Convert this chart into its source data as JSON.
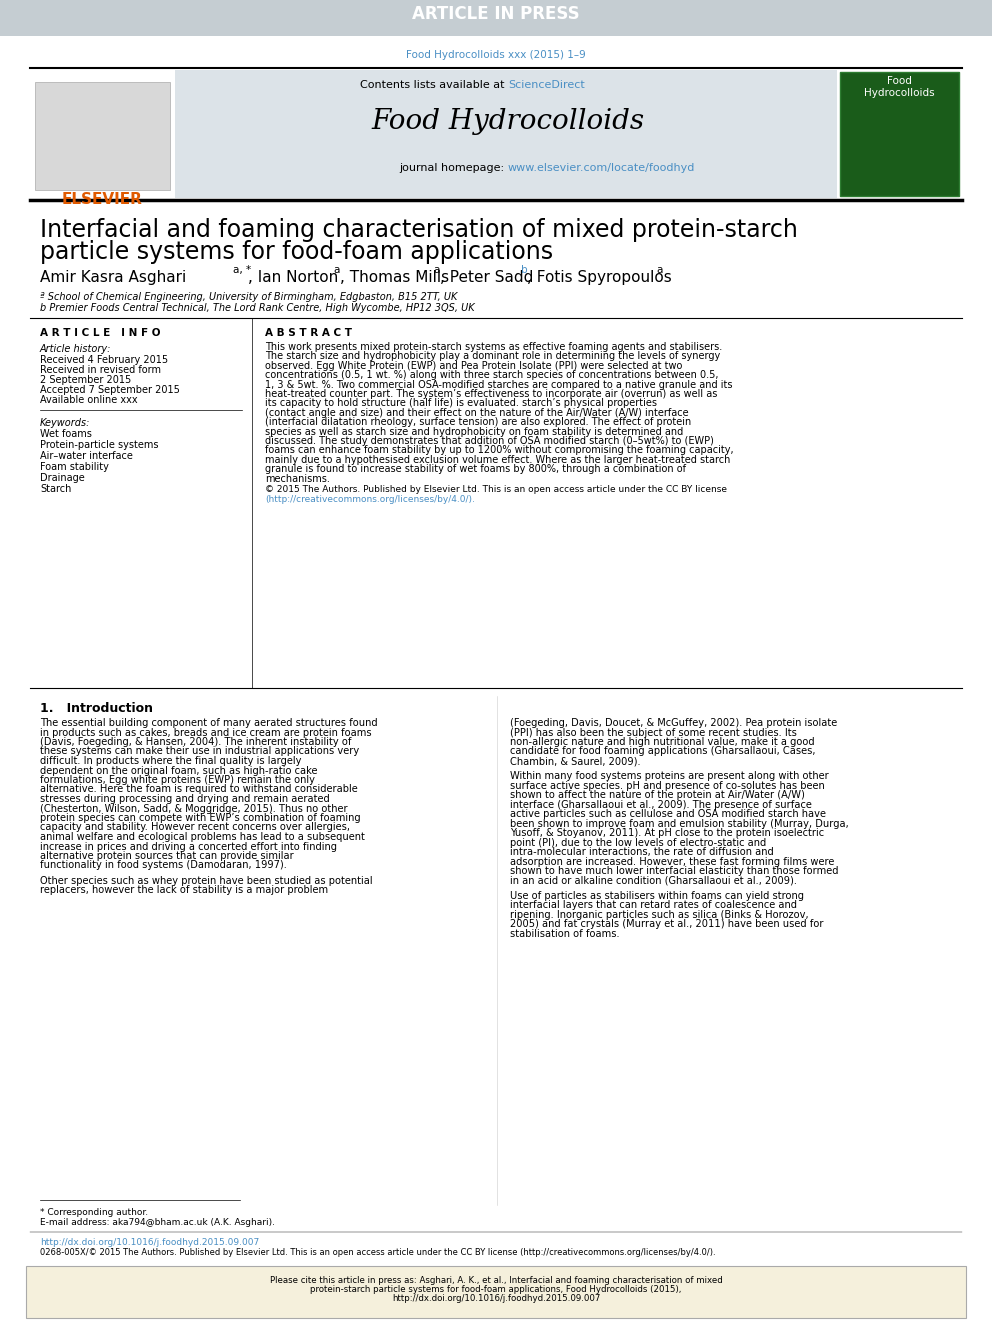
{
  "bg_banner": "#c5cdd2",
  "text_banner": "ARTICLE IN PRESS",
  "color_white": "#ffffff",
  "color_link": "#4a8fc4",
  "color_elsevier": "#e05a00",
  "color_black": "#1a1a1a",
  "color_gray_header": "#dce3e8",
  "color_cite_bg": "#f5f0dc",
  "journal_ref": "Food Hydrocolloids xxx (2015) 1–9",
  "journal_name": "Food Hydrocolloids",
  "sciencedirect_text": "ScienceDirect",
  "homepage_link": "www.elsevier.com/locate/foodhyd",
  "title_line1": "Interfacial and foaming characterisation of mixed protein-starch",
  "title_line2": "particle systems for food-foam applications",
  "affil_a": "ª School of Chemical Engineering, University of Birmingham, Edgbaston, B15 2TT, UK",
  "affil_b": "b Premier Foods Central Technical, The Lord Rank Centre, High Wycombe, HP12 3QS, UK",
  "info_header": "A R T I C L E   I N F O",
  "abstract_header": "A B S T R A C T",
  "history_label": "Article history:",
  "recv1": "Received 4 February 2015",
  "recv2": "Received in revised form",
  "recv3": "2 September 2015",
  "accepted": "Accepted 7 September 2015",
  "available": "Available online xxx",
  "kw_label": "Keywords:",
  "kw_list": [
    "Wet foams",
    "Protein-particle systems",
    "Air–water interface",
    "Foam stability",
    "Drainage",
    "Starch"
  ],
  "abstract_body": "This work presents mixed protein-starch systems as effective foaming agents and stabilisers. The starch size and hydrophobicity play a dominant role in determining the levels of synergy observed. Egg White Protein (EWP) and Pea Protein Isolate (PPI) were selected at two concentrations (0.5, 1 wt. %) along with three starch species of concentrations between 0.5, 1, 3 & 5wt. %. Two commercial OSA-modified starches are compared to a native granule and its heat-treated counter part. The system’s effectiveness to incorporate air (overrun) as well as its capacity to hold structure (half life) is evaluated. starch’s physical properties (contact angle and size) and their effect on the nature of the Air/Water (A/W) interface (interfacial dilatation rheology, surface tension) are also explored. The effect of protein species as well as starch size and hydrophobicity on foam stability is determined and discussed. The study demonstrates that addition of OSA modified starch (0–5wt%) to (EWP) foams can enhance foam stability by up to 1200% without compromising the foaming capacity, mainly due to a hypothesised exclusion volume effect. Where as the larger heat-treated starch granule is found to increase stability of wet foams by 800%, through a combination of mechanisms.",
  "abstract_copy": "© 2015 The Authors. Published by Elsevier Ltd. This is an open access article under the CC BY license",
  "abstract_copy2": "(http://creativecommons.org/licenses/by/4.0/).",
  "intro_h": "1.   Introduction",
  "intro_c1p1": "The essential building component of many aerated structures found in products such as cakes, breads and ice cream are protein foams (Davis, Foegeding, & Hansen, 2004). The inherent instability of these systems can make their use in industrial applications very difficult. In products where the final quality is largely dependent on the original foam, such as high-ratio cake formulations, Egg white proteins (EWP) remain the only alternative. Here the foam is required to withstand considerable stresses during processing and drying and remain aerated (Chesterton, Wilson, Sadd, & Moggridge, 2015). Thus no other protein species can compete with EWP’s combination of foaming capacity and stability. However recent concerns over allergies, animal welfare and ecological problems has lead to a subsequent increase in prices and driving a concerted effort into finding alternative protein sources that can provide similar functionality in food systems (Damodaran, 1997).",
  "intro_c1p2": "Other species such as whey protein have been studied as potential replacers, however the lack of stability is a major problem",
  "intro_c2p1": "(Foegeding, Davis, Doucet, & McGuffey, 2002). Pea protein isolate (PPI) has also been the subject of some recent studies. Its non-allergic nature and high nutritional value, make it a good candidate for food foaming applications (Gharsallaoui, Cases, Chambin, & Saurel, 2009).",
  "intro_c2p2": "Within many food systems proteins are present along with other surface active species. pH and presence of co-solutes has been shown to affect the nature of the protein at Air/Water (A/W) interface (Gharsallaoui et al., 2009). The presence of surface active particles such as cellulose and OSA modified starch have been shown to improve foam and emulsion stability (Murray, Durga, Yusoff, & Stoyanov, 2011). At pH close to the protein isoelectric point (PI), due to the low levels of electro-static and intra-molecular interactions, the rate of diffusion and adsorption are increased. However, these fast forming films were shown to have much lower interfacial elasticity than those formed in an acid or alkaline condition (Gharsallaoui et al., 2009).",
  "intro_c2p3": "Use of particles as stabilisers within foams can yield strong interfacial layers that can retard rates of coalescence and ripening. Inorganic particles such as silica (Binks & Horozov, 2005) and fat crystals (Murray et al., 2011) have been used for stabilisation of foams.",
  "footnote1": "* Corresponding author.",
  "footnote2": "E-mail address: aka794@bham.ac.uk (A.K. Asghari).",
  "doi": "http://dx.doi.org/10.1016/j.foodhyd.2015.09.007",
  "issn": "0268-005X/© 2015 The Authors. Published by Elsevier Ltd. This is an open access article under the CC BY license (http://creativecommons.org/licenses/by/4.0/).",
  "cite": "Please cite this article in press as: Asghari, A. K., et al., Interfacial and foaming characterisation of mixed protein-starch particle systems for food-foam applications, Food Hydrocolloids (2015), http://dx.doi.org/10.1016/j.foodhyd.2015.09.007"
}
